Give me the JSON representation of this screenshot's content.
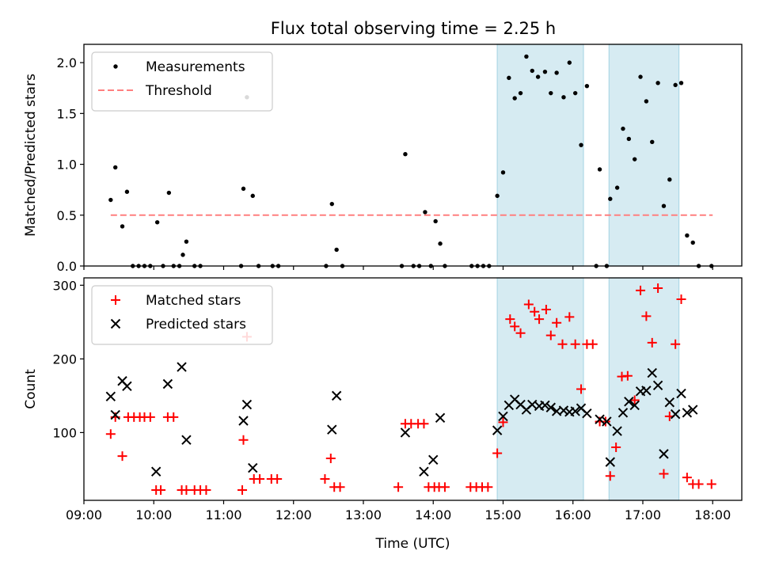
{
  "figure": {
    "title": "Flux total observing time = 2.25 h"
  },
  "chart_data": [
    {
      "type": "scatter",
      "ylabel": "Matched/Predicted stars",
      "xlabel": "",
      "xlim": [
        "09:00",
        "18:25"
      ],
      "ylim": [
        0,
        2.18
      ],
      "x_ticks": [
        "09:00",
        "10:00",
        "11:00",
        "12:00",
        "13:00",
        "14:00",
        "15:00",
        "16:00",
        "17:00",
        "18:00"
      ],
      "y_ticks": [
        0.0,
        0.5,
        1.0,
        1.5,
        2.0
      ],
      "y_tick_labels": [
        "0.0",
        "0.5",
        "1.0",
        "1.5",
        "2.0"
      ],
      "grid": false,
      "legend_position": "top-left",
      "highlight_intervals": [
        [
          "14:55",
          "16:09"
        ],
        [
          "16:31",
          "17:31"
        ]
      ],
      "series": [
        {
          "name": "Measurements",
          "marker": "dot",
          "color": "#000000",
          "points": [
            [
              "09:23",
              0.65
            ],
            [
              "09:27",
              0.97
            ],
            [
              "09:33",
              0.39
            ],
            [
              "09:37",
              0.73
            ],
            [
              "09:42",
              0.0
            ],
            [
              "09:47",
              0.0
            ],
            [
              "09:52",
              0.0
            ],
            [
              "09:57",
              0.0
            ],
            [
              "10:03",
              0.43
            ],
            [
              "10:08",
              0.0
            ],
            [
              "10:13",
              0.72
            ],
            [
              "10:17",
              0.0
            ],
            [
              "10:22",
              0.0
            ],
            [
              "10:25",
              0.11
            ],
            [
              "10:28",
              0.24
            ],
            [
              "10:35",
              0.0
            ],
            [
              "10:40",
              0.0
            ],
            [
              "11:15",
              0.0
            ],
            [
              "11:17",
              0.76
            ],
            [
              "11:20",
              1.66
            ],
            [
              "11:25",
              0.69
            ],
            [
              "11:30",
              0.0
            ],
            [
              "11:42",
              0.0
            ],
            [
              "11:47",
              0.0
            ],
            [
              "12:28",
              0.0
            ],
            [
              "12:33",
              0.61
            ],
            [
              "12:37",
              0.16
            ],
            [
              "12:42",
              0.0
            ],
            [
              "13:33",
              0.0
            ],
            [
              "13:36",
              1.1
            ],
            [
              "13:43",
              0.0
            ],
            [
              "13:48",
              0.0
            ],
            [
              "13:53",
              0.53
            ],
            [
              "13:58",
              0.0
            ],
            [
              "14:02",
              0.44
            ],
            [
              "14:06",
              0.22
            ],
            [
              "14:10",
              0.0
            ],
            [
              "14:33",
              0.0
            ],
            [
              "14:38",
              0.0
            ],
            [
              "14:43",
              0.0
            ],
            [
              "14:48",
              0.0
            ],
            [
              "14:55",
              0.69
            ],
            [
              "15:00",
              0.92
            ],
            [
              "15:05",
              1.85
            ],
            [
              "15:10",
              1.65
            ],
            [
              "15:15",
              1.7
            ],
            [
              "15:20",
              2.06
            ],
            [
              "15:25",
              1.92
            ],
            [
              "15:30",
              1.86
            ],
            [
              "15:36",
              1.91
            ],
            [
              "15:41",
              1.7
            ],
            [
              "15:46",
              1.9
            ],
            [
              "15:52",
              1.66
            ],
            [
              "15:57",
              2.0
            ],
            [
              "16:02",
              1.7
            ],
            [
              "16:07",
              1.19
            ],
            [
              "16:12",
              1.77
            ],
            [
              "16:20",
              0.0
            ],
            [
              "16:23",
              0.95
            ],
            [
              "16:29",
              0.0
            ],
            [
              "16:32",
              0.66
            ],
            [
              "16:38",
              0.77
            ],
            [
              "16:43",
              1.35
            ],
            [
              "16:48",
              1.25
            ],
            [
              "16:53",
              1.05
            ],
            [
              "16:58",
              1.86
            ],
            [
              "17:03",
              1.62
            ],
            [
              "17:08",
              1.22
            ],
            [
              "17:13",
              1.8
            ],
            [
              "17:18",
              0.59
            ],
            [
              "17:23",
              0.85
            ],
            [
              "17:28",
              1.78
            ],
            [
              "17:33",
              1.8
            ],
            [
              "17:38",
              0.3
            ],
            [
              "17:43",
              0.23
            ],
            [
              "17:48",
              0.0
            ],
            [
              "17:59",
              0.0
            ]
          ]
        },
        {
          "name": "Threshold",
          "marker": "dashed-line",
          "color": "#ff7f7f",
          "points": [
            [
              "09:23",
              0.5
            ],
            [
              "18:00",
              0.5
            ]
          ]
        }
      ]
    },
    {
      "type": "scatter",
      "ylabel": "Count",
      "xlabel": "Time (UTC)",
      "xlim": [
        "09:00",
        "18:25"
      ],
      "ylim": [
        8,
        310
      ],
      "x_ticks": [
        "09:00",
        "10:00",
        "11:00",
        "12:00",
        "13:00",
        "14:00",
        "15:00",
        "16:00",
        "17:00",
        "18:00"
      ],
      "y_ticks": [
        100,
        200,
        300
      ],
      "y_tick_labels": [
        "100",
        "200",
        "300"
      ],
      "grid": false,
      "legend_position": "top-left",
      "highlight_intervals": [
        [
          "14:55",
          "16:09"
        ],
        [
          "16:31",
          "17:31"
        ]
      ],
      "series": [
        {
          "name": "Matched stars",
          "marker": "plus",
          "color": "#ff0000",
          "points": [
            [
              "09:23",
              98
            ],
            [
              "09:27",
              121
            ],
            [
              "09:33",
              68
            ],
            [
              "09:38",
              121
            ],
            [
              "09:43",
              121
            ],
            [
              "09:48",
              121
            ],
            [
              "09:52",
              121
            ],
            [
              "09:57",
              121
            ],
            [
              "10:02",
              22
            ],
            [
              "10:06",
              22
            ],
            [
              "10:12",
              121
            ],
            [
              "10:17",
              121
            ],
            [
              "10:24",
              22
            ],
            [
              "10:28",
              22
            ],
            [
              "10:35",
              22
            ],
            [
              "10:40",
              22
            ],
            [
              "10:45",
              22
            ],
            [
              "11:16",
              22
            ],
            [
              "11:17",
              90
            ],
            [
              "11:20",
              230
            ],
            [
              "11:26",
              37
            ],
            [
              "11:31",
              37
            ],
            [
              "11:41",
              37
            ],
            [
              "11:46",
              37
            ],
            [
              "12:27",
              37
            ],
            [
              "12:32",
              65
            ],
            [
              "12:35",
              26
            ],
            [
              "12:40",
              26
            ],
            [
              "13:30",
              26
            ],
            [
              "13:36",
              112
            ],
            [
              "13:41",
              112
            ],
            [
              "13:47",
              112
            ],
            [
              "13:52",
              112
            ],
            [
              "13:56",
              26
            ],
            [
              "14:01",
              26
            ],
            [
              "14:05",
              26
            ],
            [
              "14:10",
              26
            ],
            [
              "14:32",
              26
            ],
            [
              "14:37",
              26
            ],
            [
              "14:42",
              26
            ],
            [
              "14:47",
              26
            ],
            [
              "14:55",
              72
            ],
            [
              "15:00",
              114
            ],
            [
              "15:06",
              254
            ],
            [
              "15:10",
              244
            ],
            [
              "15:15",
              235
            ],
            [
              "15:22",
              274
            ],
            [
              "15:27",
              264
            ],
            [
              "15:31",
              254
            ],
            [
              "15:37",
              267
            ],
            [
              "15:41",
              232
            ],
            [
              "15:46",
              249
            ],
            [
              "15:51",
              220
            ],
            [
              "15:57",
              257
            ],
            [
              "16:02",
              220
            ],
            [
              "16:07",
              159
            ],
            [
              "16:12",
              220
            ],
            [
              "16:17",
              220
            ],
            [
              "16:23",
              115
            ],
            [
              "16:28",
              115
            ],
            [
              "16:32",
              41
            ],
            [
              "16:37",
              80
            ],
            [
              "16:42",
              176
            ],
            [
              "16:47",
              177
            ],
            [
              "16:53",
              144
            ],
            [
              "16:58",
              293
            ],
            [
              "17:03",
              258
            ],
            [
              "17:08",
              222
            ],
            [
              "17:13",
              296
            ],
            [
              "17:18",
              44
            ],
            [
              "17:23",
              122
            ],
            [
              "17:28",
              220
            ],
            [
              "17:33",
              281
            ],
            [
              "17:38",
              39
            ],
            [
              "17:43",
              30
            ],
            [
              "17:48",
              30
            ],
            [
              "17:59",
              30
            ]
          ]
        },
        {
          "name": "Predicted stars",
          "marker": "x",
          "color": "#000000",
          "points": [
            [
              "09:23",
              149
            ],
            [
              "09:27",
              124
            ],
            [
              "09:33",
              170
            ],
            [
              "09:37",
              163
            ],
            [
              "10:02",
              47
            ],
            [
              "10:12",
              166
            ],
            [
              "10:24",
              189
            ],
            [
              "10:28",
              90
            ],
            [
              "11:17",
              116
            ],
            [
              "11:20",
              138
            ],
            [
              "11:25",
              52
            ],
            [
              "12:33",
              104
            ],
            [
              "12:37",
              150
            ],
            [
              "13:36",
              100
            ],
            [
              "13:52",
              47
            ],
            [
              "14:00",
              63
            ],
            [
              "14:06",
              120
            ],
            [
              "14:55",
              103
            ],
            [
              "15:00",
              122
            ],
            [
              "15:05",
              137
            ],
            [
              "15:10",
              145
            ],
            [
              "15:15",
              138
            ],
            [
              "15:20",
              131
            ],
            [
              "15:25",
              138
            ],
            [
              "15:31",
              136
            ],
            [
              "15:36",
              137
            ],
            [
              "15:41",
              134
            ],
            [
              "15:46",
              129
            ],
            [
              "15:52",
              130
            ],
            [
              "15:57",
              128
            ],
            [
              "16:02",
              129
            ],
            [
              "16:07",
              133
            ],
            [
              "16:12",
              126
            ],
            [
              "16:23",
              118
            ],
            [
              "16:29",
              115
            ],
            [
              "16:32",
              60
            ],
            [
              "16:38",
              102
            ],
            [
              "16:43",
              127
            ],
            [
              "16:48",
              142
            ],
            [
              "16:53",
              137
            ],
            [
              "16:58",
              156
            ],
            [
              "17:03",
              157
            ],
            [
              "17:08",
              181
            ],
            [
              "17:13",
              164
            ],
            [
              "17:18",
              71
            ],
            [
              "17:23",
              141
            ],
            [
              "17:28",
              125
            ],
            [
              "17:33",
              153
            ],
            [
              "17:38",
              127
            ],
            [
              "17:43",
              131
            ]
          ]
        }
      ]
    }
  ]
}
